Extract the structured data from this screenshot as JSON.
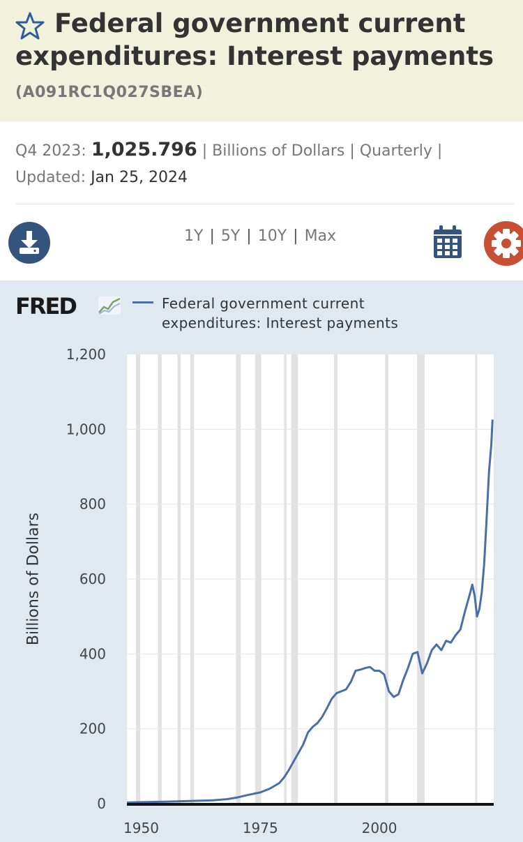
{
  "header": {
    "title": "Federal government current expenditures: Interest payments",
    "series_id": "(A091RC1Q027SBEA)",
    "star_icon": "star-outline-icon"
  },
  "meta": {
    "period": "Q4 2023:",
    "value": "1,025.796",
    "units": "Billions of Dollars",
    "frequency": "Quarterly",
    "updated_label": "Updated:",
    "updated_date": "Jan 25, 2024"
  },
  "controls": {
    "download_icon": "download-icon",
    "ranges": [
      "1Y",
      "5Y",
      "10Y",
      "Max"
    ],
    "calendar_icon": "calendar-icon",
    "settings_icon": "gear-icon"
  },
  "chart_brand": {
    "logo": "FRED"
  },
  "chart_data": {
    "type": "line",
    "title": "",
    "xlabel": "",
    "ylabel": "Billions of Dollars",
    "xlim": [
      1947,
      2024
    ],
    "ylim": [
      0,
      1200
    ],
    "y_ticks": [
      0,
      200,
      400,
      600,
      800,
      1000,
      1200
    ],
    "y_tick_labels": [
      "0",
      "200",
      "400",
      "600",
      "800",
      "1,000",
      "1,200"
    ],
    "x_ticks": [
      1950,
      1975,
      2000
    ],
    "grid": true,
    "legend": "top-left",
    "recessions": [
      [
        1948.9,
        1949.8
      ],
      [
        1953.5,
        1954.3
      ],
      [
        1957.6,
        1958.3
      ],
      [
        1960.3,
        1961.1
      ],
      [
        1969.9,
        1970.9
      ],
      [
        1973.9,
        1975.2
      ],
      [
        1980.0,
        1980.5
      ],
      [
        1981.5,
        1982.9
      ],
      [
        1990.5,
        1991.2
      ],
      [
        2001.2,
        2001.9
      ],
      [
        2007.9,
        2009.5
      ],
      [
        2020.1,
        2020.4
      ]
    ],
    "series": [
      {
        "name": "Federal government current expenditures: Interest payments",
        "color": "#4a6fa5",
        "x": [
          1947,
          1950,
          1955,
          1960,
          1965,
          1968,
          1970,
          1972,
          1975,
          1977,
          1979,
          1980,
          1981,
          1982,
          1983,
          1984,
          1985,
          1986,
          1987,
          1988,
          1989,
          1990,
          1991,
          1992,
          1993,
          1994,
          1995,
          1996,
          1997,
          1998,
          1999,
          2000,
          2001,
          2002,
          2003,
          2004,
          2005,
          2006,
          2007,
          2008,
          2009,
          2010,
          2011,
          2012,
          2013,
          2014,
          2015,
          2016,
          2017,
          2018,
          2019,
          2019.5,
          2020,
          2020.5,
          2021,
          2021.5,
          2022,
          2022.5,
          2023,
          2023.5,
          2023.75
        ],
        "values": [
          3,
          4,
          5,
          7,
          9,
          12,
          16,
          22,
          30,
          40,
          55,
          70,
          90,
          113,
          135,
          158,
          190,
          205,
          215,
          232,
          255,
          280,
          295,
          300,
          305,
          325,
          355,
          358,
          362,
          365,
          355,
          355,
          345,
          300,
          285,
          292,
          330,
          362,
          400,
          405,
          348,
          375,
          410,
          425,
          410,
          435,
          430,
          450,
          465,
          515,
          560,
          585,
          555,
          500,
          520,
          565,
          640,
          760,
          885,
          960,
          1026
        ]
      }
    ]
  }
}
